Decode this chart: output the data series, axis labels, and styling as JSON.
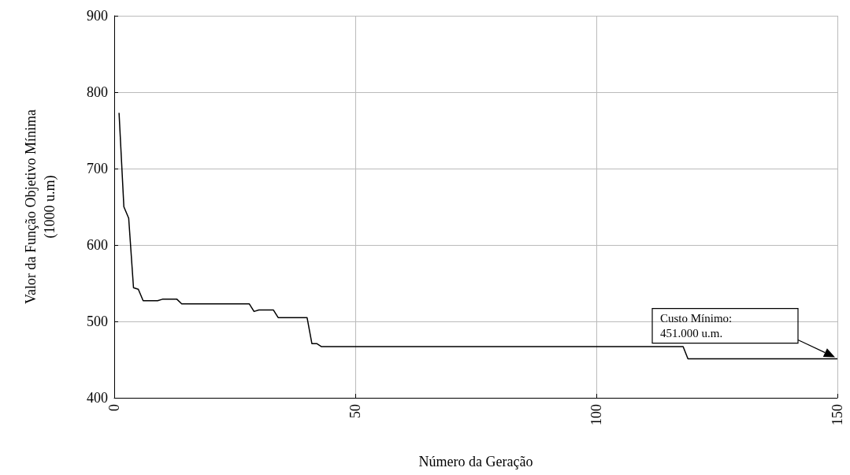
{
  "chart_data": {
    "type": "line",
    "xlabel": "Número da Geração",
    "ylabel": "Valor da Função Objetivo Mínima\n(1000 u.m)",
    "annotations": [
      "Custo Mínimo:\n451.000 u.m."
    ],
    "series": [
      {
        "color": "#000000",
        "x": [
          1,
          2,
          3,
          4,
          5,
          6,
          9,
          10,
          13,
          14,
          28,
          29,
          30,
          33,
          34,
          40,
          41,
          42,
          43,
          118,
          119,
          150
        ],
        "values": [
          773,
          650,
          635,
          544,
          542,
          527,
          527,
          529,
          529,
          523,
          523,
          513,
          515,
          515,
          505,
          505,
          471,
          471,
          467,
          467,
          451,
          451
        ]
      }
    ],
    "xlim": [
      0,
      150
    ],
    "xticks": [
      0,
      50,
      100,
      150
    ],
    "ylim": [
      400,
      900
    ],
    "yticks": [
      400,
      500,
      600,
      700,
      800,
      900
    ],
    "grid": true,
    "marker": "none",
    "line_style": "solid"
  }
}
